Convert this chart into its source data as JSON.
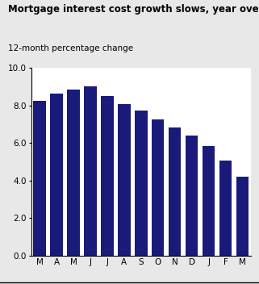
{
  "title": "Mortgage interest cost growth slows, year over year",
  "subtitle": "12-month percentage change",
  "categories": [
    "M",
    "A",
    "M",
    "J",
    "J",
    "A",
    "S",
    "O",
    "N",
    "D",
    "J",
    "F",
    "M"
  ],
  "values": [
    8.25,
    8.65,
    8.85,
    9.05,
    8.5,
    8.1,
    7.75,
    7.25,
    6.85,
    6.4,
    5.85,
    5.05,
    4.2
  ],
  "bar_color": "#1a1a7a",
  "ylim": [
    0,
    10.0
  ],
  "yticks": [
    0.0,
    2.0,
    4.0,
    6.0,
    8.0,
    10.0
  ],
  "background_color": "#e8e8e8",
  "plot_bg_color": "#ffffff",
  "title_fontsize": 8.5,
  "subtitle_fontsize": 7.5,
  "tick_fontsize": 7.5
}
